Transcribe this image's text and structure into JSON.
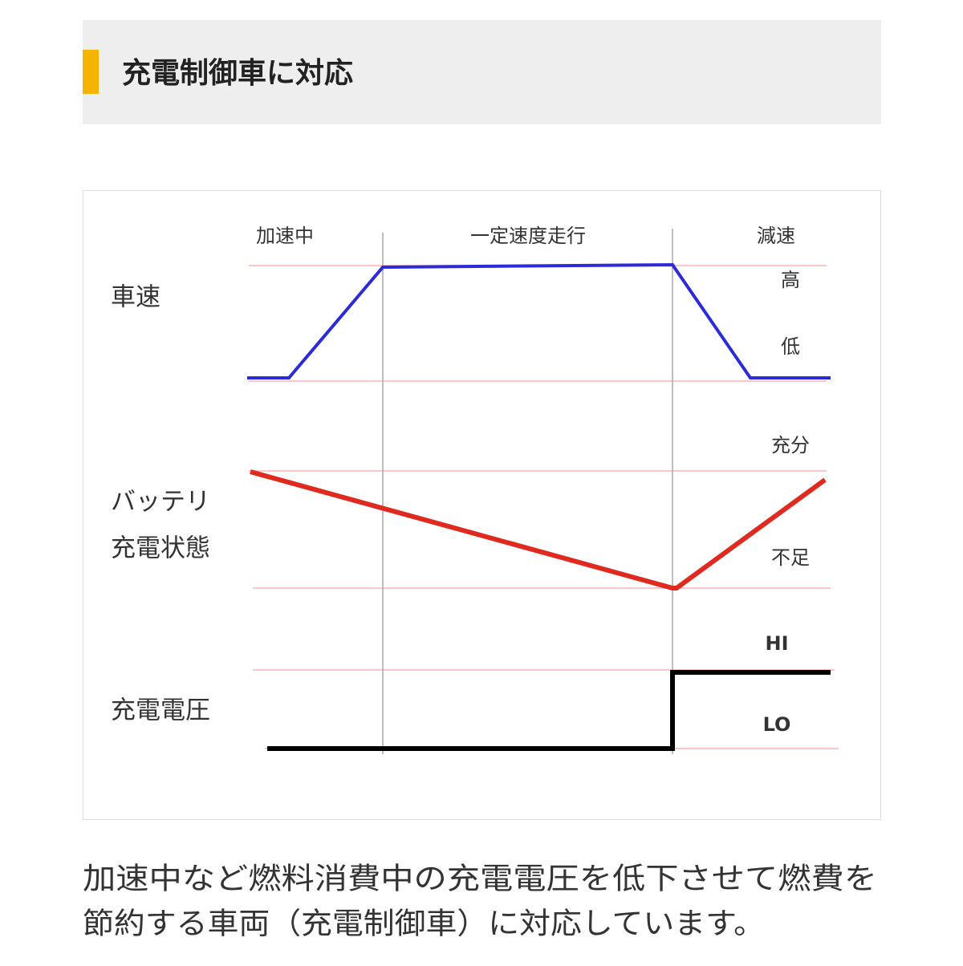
{
  "header": {
    "title": "充電制御車に対応"
  },
  "diagram": {
    "phases": [
      "加速中",
      "一定速度走行",
      "減速"
    ],
    "rows": [
      {
        "label": [
          "車速"
        ],
        "high": "高",
        "low": "低"
      },
      {
        "label": [
          "バッテリ",
          "充電状態"
        ],
        "high": "充分",
        "low": "不足"
      },
      {
        "label": [
          "充電電圧"
        ],
        "high": "HI",
        "low": "LO"
      }
    ]
  },
  "description": {
    "lines": [
      "加速中など燃料消費中の充電電圧を低下させて燃費を",
      "節約する車両（充電制御車）に対応しています。"
    ]
  }
}
